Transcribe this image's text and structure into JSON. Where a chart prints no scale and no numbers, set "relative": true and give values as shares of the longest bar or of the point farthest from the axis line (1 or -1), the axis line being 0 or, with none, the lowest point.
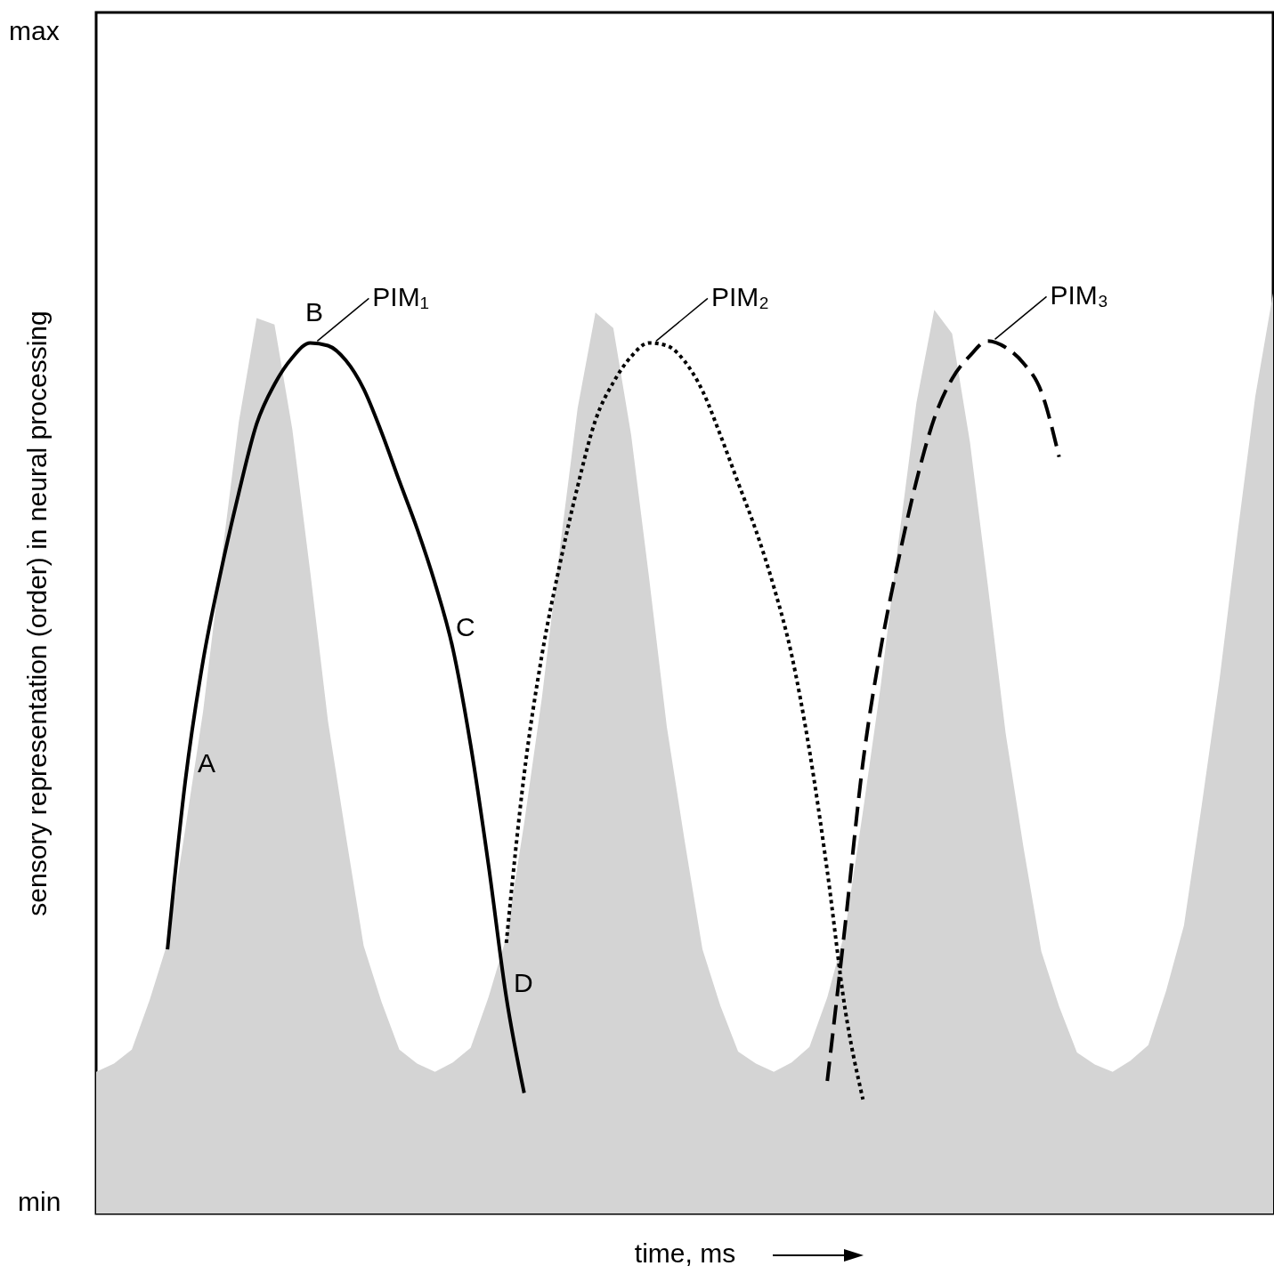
{
  "chart_data": {
    "type": "line",
    "xlabel": "time, ms",
    "ylabel": "sensory representation (order) in neural processing",
    "relative": true,
    "grid": false,
    "marker": "none",
    "categories": [
      null,
      null,
      null,
      null,
      null,
      null,
      null,
      null,
      null,
      null,
      null,
      null,
      null,
      null,
      null,
      null,
      null,
      null,
      null,
      null,
      null,
      null,
      null,
      null,
      null,
      null,
      null,
      null,
      null,
      null,
      null,
      null,
      null,
      null,
      null,
      null,
      null,
      null,
      null,
      null,
      null,
      null,
      null,
      null,
      null,
      null,
      null,
      null,
      null,
      null,
      null,
      null,
      null,
      null,
      null,
      null,
      null,
      null,
      null,
      null,
      null,
      null,
      null,
      null,
      null,
      null,
      null
    ],
    "series": [
      {
        "type": "area",
        "color": "#d4d4d4",
        "values": [
          0.154,
          0.163,
          0.178,
          0.232,
          0.294,
          0.418,
          0.546,
          0.706,
          0.86,
          0.973,
          0.966,
          0.852,
          0.698,
          0.535,
          0.411,
          0.291,
          0.23,
          0.178,
          0.163,
          0.154,
          0.164,
          0.18,
          0.235,
          0.3,
          0.424,
          0.561,
          0.722,
          0.875,
          0.979,
          0.962,
          0.846,
          0.692,
          0.529,
          0.405,
          0.287,
          0.226,
          0.176,
          0.163,
          0.154,
          0.164,
          0.181,
          0.235,
          0.307,
          0.437,
          0.574,
          0.731,
          0.881,
          0.982,
          0.956,
          0.838,
          0.683,
          0.522,
          0.398,
          0.285,
          0.225,
          0.175,
          0.162,
          0.154,
          0.166,
          0.183,
          0.242,
          0.313,
          0.444,
          0.581,
          0.738,
          0.888,
          1
        ]
      },
      {
        "name": "PIM₁",
        "color": "#000000",
        "line_style": "solid",
        "values": [
          null,
          null,
          null,
          null,
          0.287,
          0.47,
          0.601,
          0.698,
          0.783,
          0.858,
          0.901,
          0.93,
          0.946,
          0.943,
          0.927,
          0.896,
          0.849,
          0.796,
          0.744,
          0.685,
          0.614,
          0.509,
          0.379,
          0.235,
          0.131,
          null,
          null,
          null,
          null,
          null,
          null,
          null,
          null,
          null,
          null,
          null,
          null,
          null,
          null,
          null,
          null,
          null,
          null,
          null,
          null,
          null,
          null,
          null,
          null,
          null,
          null,
          null,
          null,
          null,
          null,
          null,
          null,
          null,
          null,
          null,
          null,
          null,
          null,
          null,
          null,
          null,
          null
        ]
      },
      {
        "name": "PIM₂",
        "color": "#000000",
        "line_style": "dotted",
        "values": [
          null,
          null,
          null,
          null,
          null,
          null,
          null,
          null,
          null,
          null,
          null,
          null,
          null,
          null,
          null,
          null,
          null,
          null,
          null,
          null,
          null,
          null,
          null,
          0.294,
          0.477,
          0.607,
          0.705,
          0.79,
          0.862,
          0.903,
          0.931,
          0.946,
          0.943,
          0.926,
          0.894,
          0.846,
          0.794,
          0.742,
          0.681,
          0.607,
          0.503,
          0.372,
          0.222,
          0.124,
          null,
          null,
          null,
          null,
          null,
          null,
          null,
          null,
          null,
          null,
          null,
          null,
          null,
          null,
          null,
          null,
          null,
          null,
          null,
          null,
          null,
          null,
          null
        ]
      },
      {
        "name": "PIM₃",
        "color": "#000000",
        "line_style": "dashed",
        "values": [
          null,
          null,
          null,
          null,
          null,
          null,
          null,
          null,
          null,
          null,
          null,
          null,
          null,
          null,
          null,
          null,
          null,
          null,
          null,
          null,
          null,
          null,
          null,
          null,
          null,
          null,
          null,
          null,
          null,
          null,
          null,
          null,
          null,
          null,
          null,
          null,
          null,
          null,
          null,
          null,
          null,
          0.144,
          0.313,
          0.49,
          0.614,
          0.711,
          0.796,
          0.864,
          0.907,
          0.932,
          0.948,
          0.941,
          0.924,
          0.893,
          0.822,
          null,
          null,
          null,
          null,
          null,
          null,
          null,
          null,
          null,
          null,
          null,
          null
        ]
      }
    ],
    "annotations": [
      "max",
      "min",
      "A",
      "B",
      "C",
      "D"
    ]
  }
}
